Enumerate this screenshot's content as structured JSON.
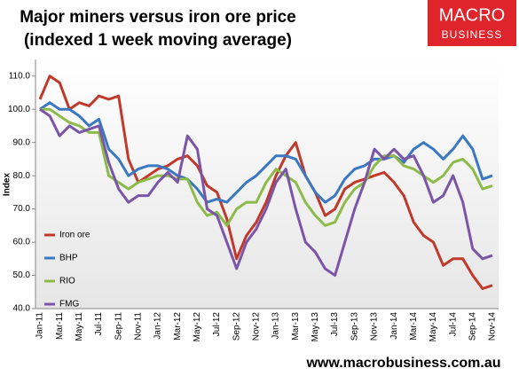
{
  "chart_data": {
    "type": "line",
    "title": [
      "Major miners versus iron ore price",
      "(indexed 1 week moving average)"
    ],
    "logo": [
      "MACRO",
      "BUSINESS"
    ],
    "footer": "www.macrobusiness.com.au",
    "y_label": "Index",
    "categories": [
      "Jan-11",
      null,
      "Mar-11",
      null,
      "May-11",
      null,
      "Jul-11",
      null,
      "Sep-11",
      null,
      "Nov-11",
      null,
      "Jan-12",
      null,
      "Mar-12",
      null,
      "May-12",
      null,
      "Jul-12",
      null,
      "Sep-12",
      null,
      "Nov-12",
      null,
      "Jan-13",
      null,
      "Mar-13",
      null,
      "May-13",
      null,
      "Jul-13",
      null,
      "Sep-13",
      null,
      "Nov-13",
      null,
      "Jan-14",
      null,
      "Mar-14",
      null,
      "May-14",
      null,
      "Jul-14",
      null,
      "Sep-14",
      null,
      "Nov-14"
    ],
    "series": [
      {
        "name": "Iron ore",
        "color": "#c0392b",
        "values": [
          103,
          110,
          108,
          100,
          102,
          101,
          104,
          103,
          104,
          85,
          78,
          80,
          82,
          83,
          85,
          86,
          83,
          77,
          75,
          67,
          55,
          62,
          66,
          72,
          80,
          86,
          90,
          80,
          75,
          68,
          70,
          76,
          78,
          79,
          80,
          81,
          78,
          74,
          66,
          62,
          60,
          53,
          55,
          55,
          50,
          46,
          47
        ]
      },
      {
        "name": "BHP",
        "color": "#3a78c2",
        "values": [
          100,
          102,
          100,
          100,
          98,
          95,
          97,
          88,
          85,
          80,
          82,
          83,
          83,
          82,
          80,
          79,
          76,
          72,
          73,
          72,
          75,
          78,
          80,
          83,
          86,
          86,
          85,
          80,
          75,
          72,
          74,
          79,
          82,
          83,
          85,
          85,
          86,
          84,
          88,
          90,
          88,
          85,
          88,
          92,
          88,
          79,
          80
        ]
      },
      {
        "name": "RIO",
        "color": "#8dbb4a",
        "values": [
          100,
          100,
          98,
          96,
          95,
          93,
          93,
          80,
          78,
          76,
          78,
          79,
          80,
          80,
          79,
          79,
          72,
          68,
          69,
          65,
          70,
          72,
          72,
          78,
          82,
          80,
          78,
          72,
          68,
          65,
          66,
          72,
          76,
          78,
          83,
          86,
          86,
          83,
          82,
          80,
          78,
          80,
          84,
          85,
          82,
          76,
          77
        ]
      },
      {
        "name": "FMG",
        "color": "#7a55a8",
        "values": [
          100,
          98,
          92,
          95,
          93,
          94,
          95,
          84,
          76,
          72,
          74,
          74,
          78,
          81,
          78,
          92,
          88,
          70,
          68,
          60,
          52,
          60,
          64,
          70,
          78,
          82,
          70,
          60,
          57,
          52,
          50,
          60,
          70,
          78,
          88,
          85,
          88,
          85,
          86,
          80,
          72,
          74,
          80,
          72,
          58,
          55,
          56
        ]
      }
    ],
    "ylim": [
      40,
      115
    ],
    "yticks": [
      {
        "value": 40,
        "label": "40.0"
      },
      {
        "value": 50,
        "label": "50.0"
      },
      {
        "value": 60,
        "label": "60.0"
      },
      {
        "value": 70,
        "label": "70.0"
      },
      {
        "value": 80,
        "label": "80.0"
      },
      {
        "value": 90,
        "label": "90.0"
      },
      {
        "value": 100,
        "label": "100.0"
      },
      {
        "value": 110,
        "label": "110.0"
      }
    ],
    "legend": "lower-left"
  }
}
